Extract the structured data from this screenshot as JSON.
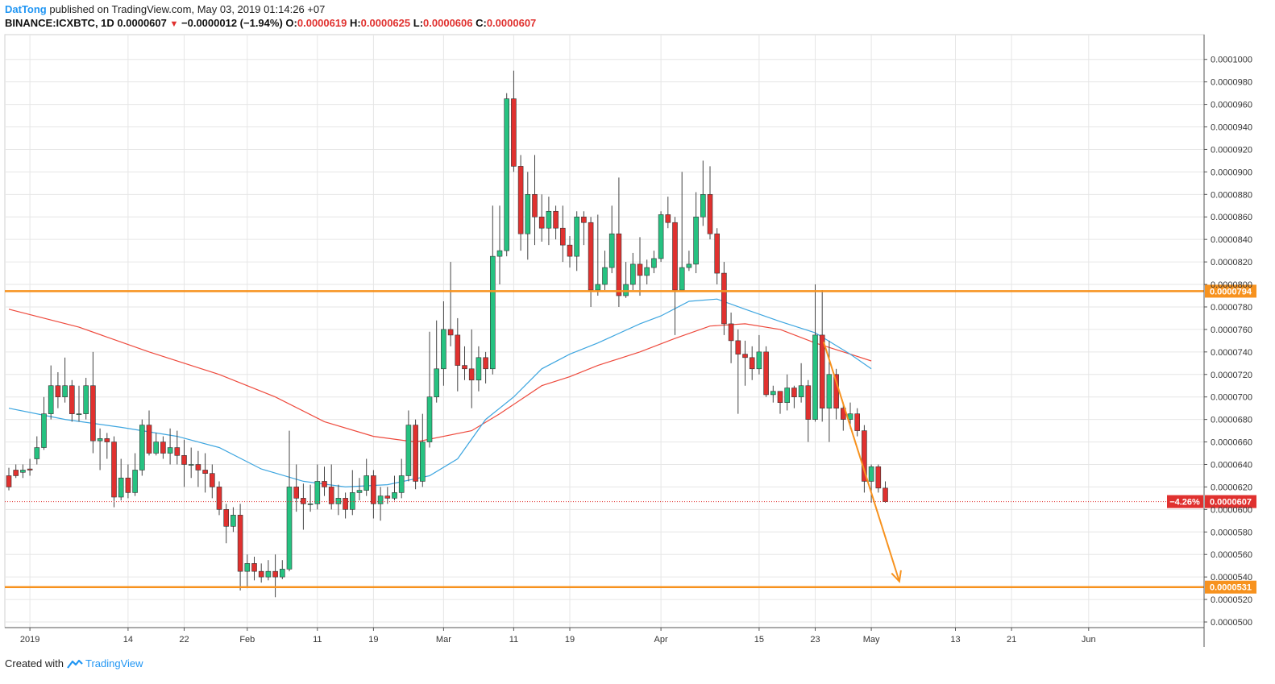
{
  "header": {
    "author": "DatTong",
    "published": "published on TradingView.com, May 03, 2019 01:14:26 +07",
    "symbol": "BINANCE:ICXBTC, 1D",
    "last": "0.0000607",
    "change": "−0.0000012 (−1.94%)",
    "o_label": "O:",
    "o_value": "0.0000619",
    "h_label": "H:",
    "h_value": "0.0000625",
    "l_label": "L:",
    "l_value": "0.0000606",
    "c_label": "C:",
    "c_value": "0.0000607"
  },
  "footer": {
    "created_with": "Created with",
    "brand": "TradingView"
  },
  "colors": {
    "up": "#26c281",
    "down": "#e0312f",
    "ma_fast": "#3ea6e0",
    "ma_slow": "#ee4a3d",
    "level": "#f7921e",
    "arrow": "#f7921e",
    "grid": "#e6e6e6"
  },
  "chart_data": {
    "type": "candlestick",
    "ylim": [
      4.95e-05,
      0.0001022
    ],
    "y_ticks": [
      "0.0000500",
      "0.0000520",
      "0.0000540",
      "0.0000560",
      "0.0000580",
      "0.0000600",
      "0.0000620",
      "0.0000640",
      "0.0000660",
      "0.0000680",
      "0.0000700",
      "0.0000720",
      "0.0000740",
      "0.0000760",
      "0.0000780",
      "0.0000800",
      "0.0000820",
      "0.0000840",
      "0.0000860",
      "0.0000880",
      "0.0000900",
      "0.0000920",
      "0.0000940",
      "0.0000960",
      "0.0000980",
      "0.0001000"
    ],
    "x_ticks": [
      {
        "label": "2019",
        "i": 3
      },
      {
        "label": "14",
        "i": 17
      },
      {
        "label": "22",
        "i": 25
      },
      {
        "label": "Feb",
        "i": 34
      },
      {
        "label": "11",
        "i": 44
      },
      {
        "label": "19",
        "i": 52
      },
      {
        "label": "Mar",
        "i": 62
      },
      {
        "label": "11",
        "i": 72
      },
      {
        "label": "19",
        "i": 80
      },
      {
        "label": "Apr",
        "i": 93
      },
      {
        "label": "15",
        "i": 107
      },
      {
        "label": "23",
        "i": 115
      },
      {
        "label": "May",
        "i": 123
      },
      {
        "label": "13",
        "i": 135
      },
      {
        "label": "21",
        "i": 143
      },
      {
        "label": "Jun",
        "i": 154
      }
    ],
    "candles": [
      [
        630,
        620,
        637,
        617
      ],
      [
        635,
        630,
        640,
        628
      ],
      [
        633,
        635,
        640,
        628
      ],
      [
        636,
        635,
        645,
        630
      ],
      [
        645,
        655,
        665,
        640
      ],
      [
        655,
        685,
        700,
        653
      ],
      [
        685,
        710,
        728,
        680
      ],
      [
        710,
        700,
        722,
        690
      ],
      [
        700,
        710,
        735,
        695
      ],
      [
        710,
        685,
        715,
        678
      ],
      [
        685,
        685,
        710,
        678
      ],
      [
        685,
        710,
        717,
        680
      ],
      [
        710,
        661,
        740,
        650
      ],
      [
        661,
        663,
        672,
        635
      ],
      [
        663,
        660,
        668,
        645
      ],
      [
        660,
        611,
        665,
        602
      ],
      [
        611,
        628,
        645,
        608
      ],
      [
        628,
        615,
        640,
        610
      ],
      [
        615,
        635,
        650,
        612
      ],
      [
        635,
        675,
        680,
        630
      ],
      [
        675,
        650,
        688,
        648
      ],
      [
        650,
        660,
        668,
        648
      ],
      [
        660,
        650,
        665,
        645
      ],
      [
        650,
        655,
        672,
        640
      ],
      [
        655,
        648,
        670,
        640
      ],
      [
        648,
        640,
        662,
        620
      ],
      [
        640,
        640,
        655,
        628
      ],
      [
        640,
        635,
        652,
        620
      ],
      [
        635,
        632,
        650,
        615
      ],
      [
        632,
        620,
        640,
        610
      ],
      [
        620,
        600,
        625,
        595
      ],
      [
        600,
        585,
        605,
        570
      ],
      [
        585,
        595,
        602,
        580
      ],
      [
        595,
        545,
        605,
        528
      ],
      [
        545,
        552,
        560,
        530
      ],
      [
        552,
        545,
        558,
        537
      ],
      [
        545,
        540,
        552,
        535
      ],
      [
        540,
        545,
        555,
        537
      ],
      [
        545,
        540,
        560,
        522
      ],
      [
        540,
        547,
        555,
        538
      ],
      [
        547,
        620,
        670,
        545
      ],
      [
        620,
        610,
        640,
        598
      ],
      [
        610,
        605,
        623,
        582
      ],
      [
        605,
        605,
        622,
        598
      ],
      [
        605,
        625,
        640,
        600
      ],
      [
        625,
        620,
        638,
        612
      ],
      [
        620,
        605,
        640,
        600
      ],
      [
        605,
        610,
        622,
        595
      ],
      [
        610,
        600,
        615,
        592
      ],
      [
        600,
        615,
        635,
        595
      ],
      [
        615,
        617,
        628,
        608
      ],
      [
        617,
        630,
        645,
        612
      ],
      [
        630,
        605,
        635,
        592
      ],
      [
        605,
        612,
        620,
        590
      ],
      [
        612,
        610,
        620,
        605
      ],
      [
        610,
        615,
        630,
        608
      ],
      [
        615,
        630,
        645,
        610
      ],
      [
        630,
        675,
        688,
        625
      ],
      [
        675,
        625,
        680,
        618
      ],
      [
        625,
        660,
        685,
        620
      ],
      [
        660,
        700,
        758,
        655
      ],
      [
        700,
        725,
        768,
        695
      ],
      [
        725,
        760,
        785,
        710
      ],
      [
        760,
        755,
        820,
        745
      ],
      [
        755,
        728,
        770,
        705
      ],
      [
        728,
        725,
        745,
        715
      ],
      [
        725,
        715,
        760,
        690
      ],
      [
        715,
        735,
        745,
        705
      ],
      [
        735,
        725,
        740,
        712
      ],
      [
        725,
        825,
        870,
        720
      ],
      [
        825,
        830,
        870,
        800
      ],
      [
        830,
        965,
        970,
        825
      ],
      [
        965,
        905,
        990,
        900
      ],
      [
        905,
        845,
        915,
        830
      ],
      [
        845,
        880,
        900,
        822
      ],
      [
        880,
        860,
        915,
        835
      ],
      [
        860,
        850,
        880,
        838
      ],
      [
        850,
        865,
        878,
        835
      ],
      [
        865,
        850,
        870,
        840
      ],
      [
        850,
        835,
        870,
        820
      ],
      [
        835,
        825,
        843,
        815
      ],
      [
        825,
        860,
        865,
        812
      ],
      [
        860,
        855,
        865,
        835
      ],
      [
        855,
        795,
        860,
        780
      ],
      [
        795,
        800,
        862,
        790
      ],
      [
        800,
        815,
        830,
        795
      ],
      [
        815,
        845,
        870,
        810
      ],
      [
        845,
        790,
        895,
        780
      ],
      [
        790,
        800,
        820,
        788
      ],
      [
        800,
        818,
        828,
        795
      ],
      [
        818,
        808,
        842,
        790
      ],
      [
        808,
        815,
        822,
        800
      ],
      [
        815,
        823,
        830,
        810
      ],
      [
        823,
        862,
        865,
        820
      ],
      [
        862,
        855,
        878,
        850
      ],
      [
        855,
        795,
        860,
        755
      ],
      [
        795,
        815,
        900,
        798
      ],
      [
        815,
        818,
        830,
        812
      ],
      [
        818,
        860,
        882,
        810
      ],
      [
        860,
        880,
        910,
        852
      ],
      [
        880,
        845,
        905,
        840
      ],
      [
        845,
        810,
        850,
        800
      ],
      [
        810,
        765,
        820,
        755
      ],
      [
        765,
        750,
        775,
        730
      ],
      [
        750,
        738,
        760,
        685
      ],
      [
        738,
        735,
        750,
        710
      ],
      [
        735,
        725,
        745,
        715
      ],
      [
        725,
        740,
        755,
        720
      ],
      [
        740,
        702,
        745,
        700
      ],
      [
        702,
        705,
        710,
        695
      ],
      [
        705,
        695,
        705,
        685
      ],
      [
        695,
        708,
        720,
        688
      ],
      [
        708,
        700,
        710,
        690
      ],
      [
        700,
        710,
        730,
        695
      ],
      [
        710,
        680,
        715,
        660
      ],
      [
        680,
        755,
        800,
        678
      ],
      [
        755,
        690,
        795,
        678
      ],
      [
        690,
        720,
        750,
        660
      ],
      [
        720,
        690,
        725,
        680
      ],
      [
        690,
        680,
        695,
        670
      ],
      [
        680,
        685,
        695,
        672
      ],
      [
        685,
        670,
        690,
        665
      ],
      [
        670,
        625,
        675,
        615
      ],
      [
        625,
        638,
        640,
        606
      ],
      [
        638,
        619,
        640,
        615
      ],
      [
        619,
        607,
        625,
        606
      ]
    ],
    "ma_slow": [
      [
        0,
        778
      ],
      [
        10,
        762
      ],
      [
        20,
        740
      ],
      [
        30,
        720
      ],
      [
        38,
        700
      ],
      [
        45,
        678
      ],
      [
        52,
        665
      ],
      [
        58,
        660
      ],
      [
        66,
        670
      ],
      [
        70,
        685
      ],
      [
        76,
        710
      ],
      [
        80,
        718
      ],
      [
        84,
        728
      ],
      [
        90,
        740
      ],
      [
        95,
        752
      ],
      [
        100,
        763
      ],
      [
        105,
        765
      ],
      [
        110,
        760
      ],
      [
        115,
        748
      ],
      [
        120,
        738
      ],
      [
        123,
        732
      ]
    ],
    "ma_fast": [
      [
        0,
        690
      ],
      [
        8,
        680
      ],
      [
        16,
        673
      ],
      [
        24,
        665
      ],
      [
        30,
        655
      ],
      [
        36,
        636
      ],
      [
        42,
        625
      ],
      [
        48,
        620
      ],
      [
        54,
        622
      ],
      [
        60,
        630
      ],
      [
        64,
        645
      ],
      [
        68,
        680
      ],
      [
        72,
        700
      ],
      [
        76,
        725
      ],
      [
        80,
        738
      ],
      [
        84,
        748
      ],
      [
        90,
        765
      ],
      [
        93,
        772
      ],
      [
        97,
        785
      ],
      [
        101,
        787
      ],
      [
        105,
        778
      ],
      [
        110,
        767
      ],
      [
        115,
        757
      ],
      [
        120,
        738
      ],
      [
        123,
        725
      ]
    ],
    "levels": [
      {
        "value": 794,
        "label": "0.0000794"
      },
      {
        "value": 531,
        "label": "0.0000531"
      }
    ],
    "current": {
      "value": 607,
      "label": "0.0000607",
      "change_label": "−4.26%"
    },
    "arrow": {
      "from_i": 116.2,
      "from_v": 749,
      "to_i": 127,
      "to_v": 536
    }
  }
}
